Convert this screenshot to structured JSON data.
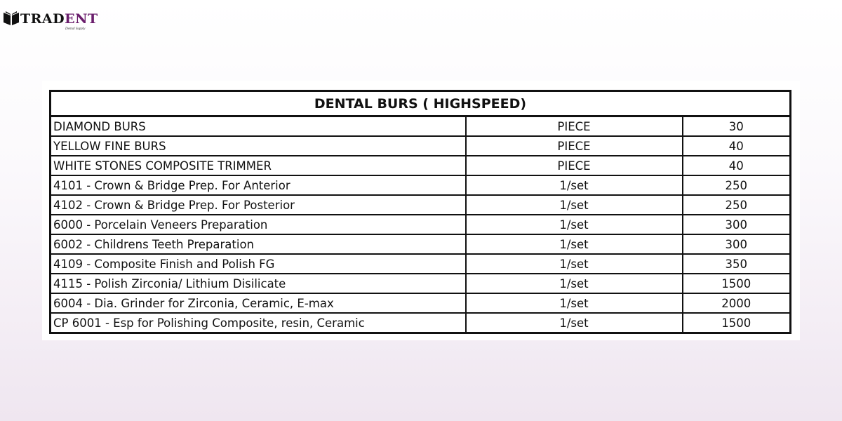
{
  "logo": {
    "text_dark": "TRAD",
    "text_accent": "ENT",
    "tagline": "Dental Supply",
    "accent_color": "#6a1d6c"
  },
  "table": {
    "title": "DENTAL BURS ( HIGHSPEED)",
    "rows": [
      {
        "item": "DIAMOND BURS",
        "unit": "PIECE",
        "price": "30"
      },
      {
        "item": "YELLOW FINE BURS",
        "unit": "PIECE",
        "price": "40"
      },
      {
        "item": "WHITE STONES COMPOSITE TRIMMER",
        "unit": "PIECE",
        "price": "40"
      },
      {
        "item": "4101 - Crown & Bridge Prep. For Anterior",
        "unit": "1/set",
        "price": "250"
      },
      {
        "item": "4102 - Crown & Bridge Prep. For Posterior",
        "unit": "1/set",
        "price": "250"
      },
      {
        "item": "6000 - Porcelain Veneers Preparation",
        "unit": "1/set",
        "price": "300"
      },
      {
        "item": "6002 - Childrens Teeth Preparation",
        "unit": "1/set",
        "price": "300"
      },
      {
        "item": "4109 - Composite Finish and Polish FG",
        "unit": "1/set",
        "price": "350"
      },
      {
        "item": "4115 - Polish Zirconia/ Lithium Disilicate",
        "unit": "1/set",
        "price": "1500"
      },
      {
        "item": "6004 - Dia. Grinder for Zirconia, Ceramic, E-max",
        "unit": "1/set",
        "price": "2000"
      },
      {
        "item": "CP 6001 - Esp for Polishing Composite, resin, Ceramic",
        "unit": "1/set",
        "price": "1500"
      }
    ]
  }
}
